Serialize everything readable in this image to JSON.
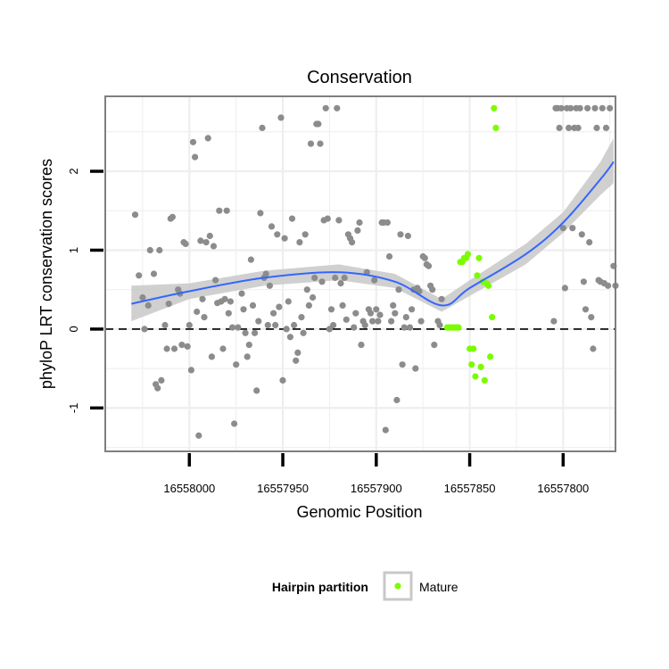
{
  "chart_data": {
    "type": "scatter",
    "title": "Conservation",
    "xlabel": "Genomic Position",
    "ylabel": "phyloP LRT conservation scores",
    "x_reversed": true,
    "xlim": [
      16558045,
      16557772
    ],
    "ylim": [
      -1.55,
      2.95
    ],
    "x_ticks": [
      16558000,
      16557950,
      16557900,
      16557850,
      16557800
    ],
    "y_ticks": [
      -1,
      0,
      1,
      2
    ],
    "grid": true,
    "reference_line": {
      "y": 0,
      "style": "dashed"
    },
    "legend": {
      "title": "Hairpin partition",
      "entries": [
        "Mature"
      ],
      "position": "bottom"
    },
    "colors": {
      "other": "#8c8c8c",
      "mature": "#7cfc00",
      "smooth": "#3366ff",
      "band": "#c8c8c8",
      "panel_border": "#7f7f7f",
      "grid": "#eeeeee"
    },
    "series": [
      {
        "name": "",
        "color": "#8c8c8c",
        "points": [
          [
            16558029,
            1.45
          ],
          [
            16558027,
            0.68
          ],
          [
            16558025,
            0.4
          ],
          [
            16558024,
            0.0
          ],
          [
            16558022,
            0.3
          ],
          [
            16558021,
            1.0
          ],
          [
            16558019,
            0.7
          ],
          [
            16558018,
            -0.7
          ],
          [
            16558017,
            -0.75
          ],
          [
            16558016,
            1.0
          ],
          [
            16558015,
            -0.65
          ],
          [
            16558013,
            0.05
          ],
          [
            16558012,
            -0.25
          ],
          [
            16558011,
            0.32
          ],
          [
            16558010,
            1.4
          ],
          [
            16558009,
            1.42
          ],
          [
            16558008,
            -0.25
          ],
          [
            16558006,
            0.5
          ],
          [
            16558005,
            0.45
          ],
          [
            16558004,
            -0.2
          ],
          [
            16558003,
            1.1
          ],
          [
            16558002,
            1.08
          ],
          [
            16558001,
            -0.22
          ],
          [
            16558000,
            0.05
          ],
          [
            16557999,
            -0.52
          ],
          [
            16557998,
            2.37
          ],
          [
            16557997,
            2.18
          ],
          [
            16557996,
            0.22
          ],
          [
            16557995,
            -1.35
          ],
          [
            16557994,
            1.12
          ],
          [
            16557993,
            0.38
          ],
          [
            16557992,
            0.15
          ],
          [
            16557991,
            1.1
          ],
          [
            16557990,
            2.42
          ],
          [
            16557989,
            1.18
          ],
          [
            16557988,
            -0.35
          ],
          [
            16557987,
            1.05
          ],
          [
            16557986,
            0.62
          ],
          [
            16557985,
            0.33
          ],
          [
            16557984,
            1.5
          ],
          [
            16557983,
            0.35
          ],
          [
            16557982,
            -0.25
          ],
          [
            16557981,
            0.38
          ],
          [
            16557980,
            1.5
          ],
          [
            16557979,
            0.2
          ],
          [
            16557978,
            0.35
          ],
          [
            16557977,
            0.02
          ],
          [
            16557976,
            -1.2
          ],
          [
            16557975,
            -0.45
          ],
          [
            16557974,
            0.02
          ],
          [
            16557972,
            0.45
          ],
          [
            16557971,
            0.25
          ],
          [
            16557970,
            -0.05
          ],
          [
            16557969,
            -0.35
          ],
          [
            16557968,
            -0.2
          ],
          [
            16557967,
            0.88
          ],
          [
            16557966,
            0.3
          ],
          [
            16557965,
            -0.05
          ],
          [
            16557964,
            -0.78
          ],
          [
            16557963,
            0.1
          ],
          [
            16557962,
            1.47
          ],
          [
            16557961,
            2.55
          ],
          [
            16557960,
            0.65
          ],
          [
            16557959,
            0.7
          ],
          [
            16557958,
            0.05
          ],
          [
            16557957,
            0.55
          ],
          [
            16557956,
            1.3
          ],
          [
            16557955,
            0.2
          ],
          [
            16557954,
            0.05
          ],
          [
            16557953,
            1.2
          ],
          [
            16557952,
            0.28
          ],
          [
            16557951,
            2.68
          ],
          [
            16557950,
            -0.65
          ],
          [
            16557949,
            1.15
          ],
          [
            16557948,
            0.0
          ],
          [
            16557947,
            0.35
          ],
          [
            16557946,
            -0.1
          ],
          [
            16557945,
            1.4
          ],
          [
            16557944,
            0.05
          ],
          [
            16557943,
            -0.4
          ],
          [
            16557942,
            -0.3
          ],
          [
            16557941,
            1.1
          ],
          [
            16557940,
            0.15
          ],
          [
            16557939,
            -0.05
          ],
          [
            16557938,
            1.2
          ],
          [
            16557937,
            0.5
          ],
          [
            16557936,
            0.3
          ],
          [
            16557935,
            2.35
          ],
          [
            16557934,
            0.4
          ],
          [
            16557933,
            0.65
          ],
          [
            16557932,
            2.6
          ],
          [
            16557931,
            2.6
          ],
          [
            16557930,
            2.35
          ],
          [
            16557929,
            0.6
          ],
          [
            16557928,
            1.38
          ],
          [
            16557927,
            2.8
          ],
          [
            16557926,
            1.4
          ],
          [
            16557925,
            0.0
          ],
          [
            16557924,
            0.25
          ],
          [
            16557923,
            0.05
          ],
          [
            16557922,
            0.65
          ],
          [
            16557921,
            2.8
          ],
          [
            16557920,
            1.38
          ],
          [
            16557919,
            0.58
          ],
          [
            16557918,
            0.3
          ],
          [
            16557917,
            0.65
          ],
          [
            16557916,
            0.12
          ],
          [
            16557915,
            1.2
          ],
          [
            16557914,
            1.15
          ],
          [
            16557913,
            1.1
          ],
          [
            16557912,
            0.02
          ],
          [
            16557911,
            0.2
          ],
          [
            16557910,
            1.25
          ],
          [
            16557909,
            1.35
          ],
          [
            16557908,
            -0.2
          ],
          [
            16557907,
            0.1
          ],
          [
            16557906,
            0.05
          ],
          [
            16557905,
            0.72
          ],
          [
            16557904,
            0.25
          ],
          [
            16557903,
            0.2
          ],
          [
            16557902,
            0.1
          ],
          [
            16557901,
            0.62
          ],
          [
            16557900,
            0.25
          ],
          [
            16557899,
            0.1
          ],
          [
            16557898,
            0.18
          ],
          [
            16557897,
            1.35
          ],
          [
            16557896,
            1.35
          ],
          [
            16557895,
            -1.28
          ],
          [
            16557894,
            1.35
          ],
          [
            16557893,
            0.92
          ],
          [
            16557892,
            0.1
          ],
          [
            16557891,
            0.3
          ],
          [
            16557890,
            0.2
          ],
          [
            16557889,
            -0.9
          ],
          [
            16557888,
            0.5
          ],
          [
            16557887,
            1.2
          ],
          [
            16557886,
            -0.45
          ],
          [
            16557885,
            0.02
          ],
          [
            16557884,
            0.15
          ],
          [
            16557883,
            1.18
          ],
          [
            16557882,
            0.02
          ],
          [
            16557881,
            0.25
          ],
          [
            16557880,
            0.5
          ],
          [
            16557879,
            -0.5
          ],
          [
            16557878,
            0.52
          ],
          [
            16557877,
            0.48
          ],
          [
            16557876,
            0.1
          ],
          [
            16557875,
            0.92
          ],
          [
            16557874,
            0.9
          ],
          [
            16557873,
            0.82
          ],
          [
            16557872,
            0.8
          ],
          [
            16557871,
            0.55
          ],
          [
            16557870,
            0.5
          ],
          [
            16557869,
            -0.2
          ],
          [
            16557867,
            0.1
          ],
          [
            16557866,
            0.05
          ],
          [
            16557865,
            0.38
          ],
          [
            16557805,
            0.1
          ],
          [
            16557804,
            2.8
          ],
          [
            16557803,
            2.8
          ],
          [
            16557802,
            2.55
          ],
          [
            16557801,
            2.8
          ],
          [
            16557800,
            1.28
          ],
          [
            16557799,
            0.52
          ],
          [
            16557798,
            2.8
          ],
          [
            16557797,
            2.55
          ],
          [
            16557796,
            2.8
          ],
          [
            16557795,
            1.28
          ],
          [
            16557794,
            2.55
          ],
          [
            16557793,
            2.8
          ],
          [
            16557792,
            2.55
          ],
          [
            16557791,
            2.8
          ],
          [
            16557790,
            1.2
          ],
          [
            16557789,
            0.6
          ],
          [
            16557788,
            0.25
          ],
          [
            16557787,
            2.8
          ],
          [
            16557786,
            1.1
          ],
          [
            16557785,
            0.15
          ],
          [
            16557784,
            -0.25
          ],
          [
            16557783,
            2.8
          ],
          [
            16557782,
            2.55
          ],
          [
            16557781,
            0.62
          ],
          [
            16557780,
            0.6
          ],
          [
            16557779,
            2.8
          ],
          [
            16557778,
            0.58
          ],
          [
            16557777,
            2.55
          ],
          [
            16557776,
            0.55
          ],
          [
            16557775,
            2.8
          ],
          [
            16557773,
            0.8
          ],
          [
            16557772,
            0.55
          ]
        ]
      },
      {
        "name": "Mature",
        "color": "#7cfc00",
        "points": [
          [
            16557862,
            0.02
          ],
          [
            16557861,
            0.02
          ],
          [
            16557860,
            0.02
          ],
          [
            16557859,
            0.02
          ],
          [
            16557858,
            0.02
          ],
          [
            16557857,
            0.02
          ],
          [
            16557856,
            0.02
          ],
          [
            16557855,
            0.85
          ],
          [
            16557854,
            0.85
          ],
          [
            16557853,
            0.9
          ],
          [
            16557852,
            0.9
          ],
          [
            16557851,
            0.95
          ],
          [
            16557850,
            -0.25
          ],
          [
            16557849,
            -0.45
          ],
          [
            16557848,
            -0.25
          ],
          [
            16557847,
            -0.6
          ],
          [
            16557846,
            0.68
          ],
          [
            16557845,
            0.9
          ],
          [
            16557844,
            -0.48
          ],
          [
            16557843,
            0.6
          ],
          [
            16557842,
            -0.65
          ],
          [
            16557841,
            0.58
          ],
          [
            16557840,
            0.55
          ],
          [
            16557839,
            -0.35
          ],
          [
            16557838,
            0.15
          ],
          [
            16557837,
            2.8
          ],
          [
            16557836,
            2.55
          ]
        ]
      }
    ],
    "smooth": {
      "x": [
        16558031,
        16558000,
        16557960,
        16557920,
        16557890,
        16557865,
        16557850,
        16557820,
        16557800,
        16557780,
        16557773
      ],
      "y": [
        0.32,
        0.48,
        0.65,
        0.72,
        0.6,
        0.3,
        0.52,
        0.95,
        1.35,
        1.9,
        2.12
      ],
      "lower": [
        0.1,
        0.38,
        0.55,
        0.62,
        0.52,
        0.22,
        0.42,
        0.82,
        1.22,
        1.7,
        1.85
      ],
      "upper": [
        0.55,
        0.58,
        0.74,
        0.82,
        0.7,
        0.38,
        0.62,
        1.08,
        1.48,
        2.12,
        2.42
      ]
    }
  }
}
